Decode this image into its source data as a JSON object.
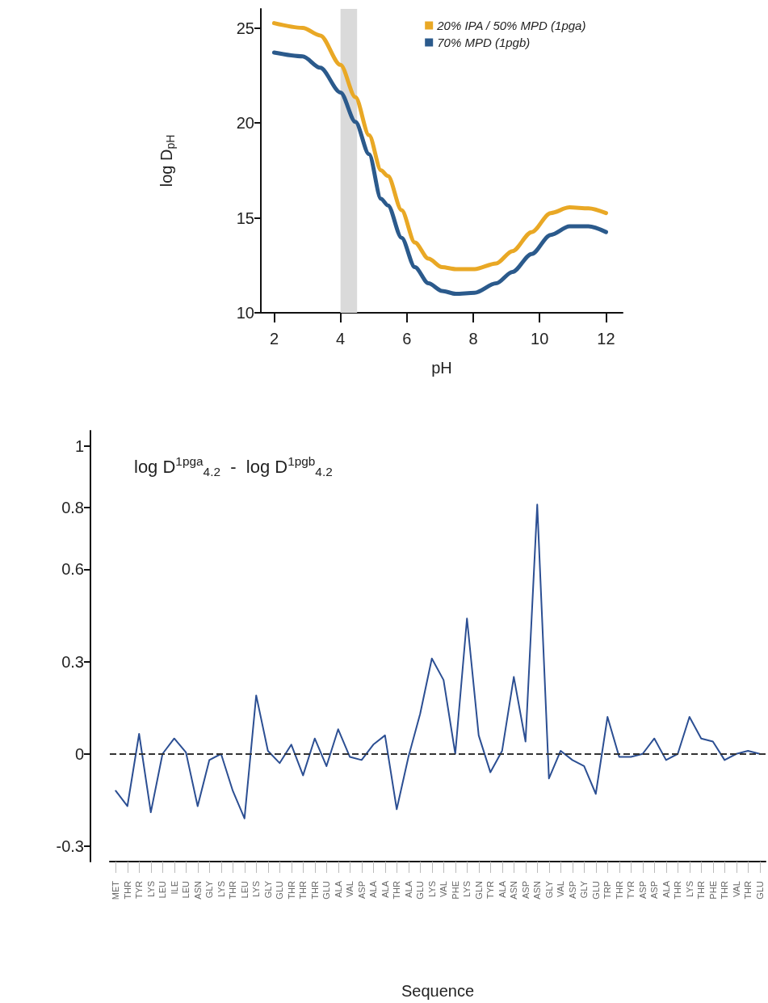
{
  "chart_data": [
    {
      "type": "line",
      "xlabel": "pH",
      "ylabel": "log D$_{pH}$",
      "x": [
        2,
        2.86,
        3.39,
        4,
        4.45,
        4.86,
        5.22,
        5.43,
        5.84,
        6.24,
        6.65,
        7.06,
        7.47,
        8.04,
        8.69,
        9.18,
        9.76,
        10.33,
        10.9,
        11.47,
        12
      ],
      "series": [
        {
          "name": "20% IPA / 50% MPD (1pga)",
          "color": "#e9a825",
          "values": [
            25.25,
            25.0,
            24.6,
            23.05,
            21.35,
            19.35,
            17.5,
            17.2,
            15.4,
            13.7,
            12.85,
            12.4,
            12.3,
            12.3,
            12.6,
            13.25,
            14.25,
            15.25,
            15.55,
            15.5,
            15.25
          ]
        },
        {
          "name": "70% MPD (1pgb)",
          "color": "#2b5a8c",
          "values": [
            23.7,
            23.5,
            22.9,
            21.6,
            20.05,
            18.35,
            16.0,
            15.65,
            13.95,
            12.4,
            11.55,
            11.15,
            11.0,
            11.05,
            11.55,
            12.15,
            13.1,
            14.1,
            14.55,
            14.55,
            14.25
          ]
        }
      ],
      "xlim": [
        1.6,
        12.5
      ],
      "xticks": [
        2,
        4,
        6,
        8,
        10,
        12
      ],
      "ylim": [
        10,
        26
      ],
      "yticks": [
        10,
        15,
        20,
        25
      ],
      "bands": [
        {
          "axis": "x",
          "from": 4,
          "to": 4.5,
          "color": "#dadada"
        }
      ],
      "legend": "top right",
      "marker": "none",
      "line_style": "solid"
    },
    {
      "type": "line",
      "xlabel": "Sequence",
      "categories": [
        "MET",
        "THR",
        "TYR",
        "LYS",
        "LEU",
        "ILE",
        "LEU",
        "ASN",
        "GLY",
        "LYS",
        "THR",
        "LEU",
        "LYS",
        "GLY",
        "GLU",
        "THR",
        "THR",
        "THR",
        "GLU",
        "ALA",
        "VAL",
        "ASP",
        "ALA",
        "ALA",
        "THR",
        "ALA",
        "GLU",
        "LYS",
        "VAL",
        "PHE",
        "LYS",
        "GLN",
        "TYR",
        "ALA",
        "ASN",
        "ASP",
        "ASN",
        "GLY",
        "VAL",
        "ASP",
        "GLY",
        "GLU",
        "TRP",
        "THR",
        "TYR",
        "ASP",
        "ASP",
        "ALA",
        "THR",
        "LYS",
        "THR",
        "PHE",
        "THR",
        "VAL",
        "THR",
        "GLU"
      ],
      "series": [
        {
          "color": "#2c4f93",
          "values": [
            -0.12,
            -0.17,
            0.065,
            -0.19,
            0,
            0.05,
            0.005,
            -0.17,
            -0.02,
            0,
            -0.12,
            -0.21,
            0.19,
            0.01,
            -0.03,
            0.03,
            -0.07,
            0.05,
            -0.04,
            0.08,
            -0.01,
            -0.02,
            0.03,
            0.06,
            -0.18,
            -0.01,
            0.13,
            0.31,
            0.24,
            0,
            0.44,
            0.06,
            -0.06,
            0.01,
            0.25,
            0.04,
            0.81,
            -0.08,
            0.01,
            -0.02,
            -0.04,
            -0.13,
            0.12,
            -0.01,
            -0.01,
            0,
            0.05,
            -0.02,
            0,
            0.12,
            0.05,
            0.04,
            -0.02,
            0,
            0.01,
            0
          ]
        }
      ],
      "ylim": [
        -0.35,
        1.05
      ],
      "yticks": [
        -0.3,
        0,
        0.3,
        0.6,
        0.8,
        1
      ],
      "ref_lines": [
        {
          "axis": "y",
          "value": 0,
          "line_style": "dashed",
          "color": "#333333"
        }
      ],
      "annotations": [
        "log D$^{1pga}$$_{4.2}$  -  log D$^{1pgb}$$_{4.2}$"
      ],
      "marker": "none"
    }
  ]
}
